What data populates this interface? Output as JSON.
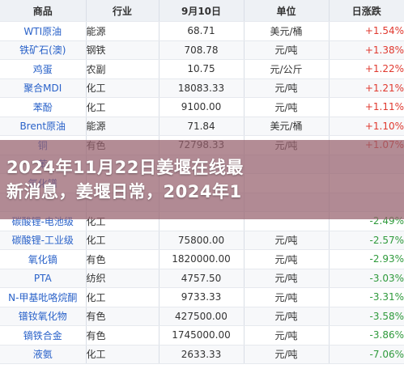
{
  "table": {
    "headers": [
      "商品",
      "行业",
      "9月10日",
      "单位",
      "日涨跌"
    ],
    "rows": [
      {
        "name": "WTI原油",
        "industry": "能源",
        "price": "68.71",
        "unit": "美元/桶",
        "change": "+1.54%",
        "direction": "up"
      },
      {
        "name": "铁矿石(澳)",
        "industry": "钢铁",
        "price": "708.78",
        "unit": "元/吨",
        "change": "+1.38%",
        "direction": "up"
      },
      {
        "name": "鸡蛋",
        "industry": "农副",
        "price": "10.75",
        "unit": "元/公斤",
        "change": "+1.22%",
        "direction": "up"
      },
      {
        "name": "聚合MDI",
        "industry": "化工",
        "price": "18083.33",
        "unit": "元/吨",
        "change": "+1.21%",
        "direction": "up"
      },
      {
        "name": "苯酚",
        "industry": "化工",
        "price": "9100.00",
        "unit": "元/吨",
        "change": "+1.11%",
        "direction": "up"
      },
      {
        "name": "Brent原油",
        "industry": "能源",
        "price": "71.84",
        "unit": "美元/桶",
        "change": "+1.10%",
        "direction": "up"
      },
      {
        "name": "铜",
        "industry": "有色",
        "price": "72798.33",
        "unit": "元/吨",
        "change": "+1.07%",
        "direction": "up"
      },
      {
        "name": "苯",
        "industry": "",
        "price": "",
        "unit": "",
        "change": "",
        "direction": "up"
      },
      {
        "name": "氧化镨",
        "industry": "",
        "price": "",
        "unit": "",
        "change": "",
        "direction": "down"
      },
      {
        "name": "",
        "industry": "",
        "price": "",
        "unit": "",
        "change": "",
        "direction": "down"
      },
      {
        "name": "碳酸锂-电池级",
        "industry": "化工",
        "price": "",
        "unit": "",
        "change": "-2.49%",
        "direction": "down"
      },
      {
        "name": "碳酸锂-工业级",
        "industry": "化工",
        "price": "75800.00",
        "unit": "元/吨",
        "change": "-2.57%",
        "direction": "down"
      },
      {
        "name": "氧化镝",
        "industry": "有色",
        "price": "1820000.00",
        "unit": "元/吨",
        "change": "-2.93%",
        "direction": "down"
      },
      {
        "name": "PTA",
        "industry": "纺织",
        "price": "4757.50",
        "unit": "元/吨",
        "change": "-3.03%",
        "direction": "down"
      },
      {
        "name": "N-甲基吡咯烷酮",
        "industry": "化工",
        "price": "9733.33",
        "unit": "元/吨",
        "change": "-3.31%",
        "direction": "down"
      },
      {
        "name": "镨钕氧化物",
        "industry": "有色",
        "price": "427500.00",
        "unit": "元/吨",
        "change": "-3.58%",
        "direction": "down"
      },
      {
        "name": "镝铁合金",
        "industry": "有色",
        "price": "1745000.00",
        "unit": "元/吨",
        "change": "-3.86%",
        "direction": "down"
      },
      {
        "name": "液氨",
        "industry": "化工",
        "price": "2633.33",
        "unit": "元/吨",
        "change": "-7.06%",
        "direction": "down"
      }
    ]
  },
  "banner": {
    "line1": "2024年11月22日姜堰在线最",
    "line2": "新消息，姜堰日常，2024年1"
  },
  "colors": {
    "up": "#e0392f",
    "down": "#2f9a3c",
    "name_link": "#2a62c9",
    "banner_overlay": "#965f6c"
  }
}
